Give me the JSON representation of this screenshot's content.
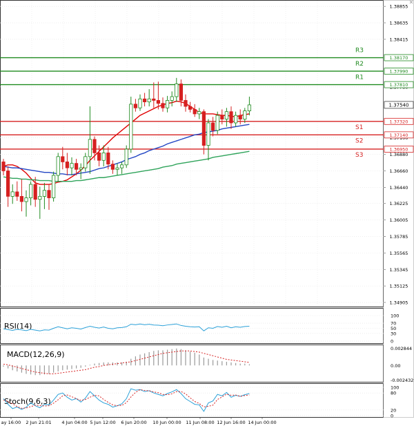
{
  "chart_data": {
    "type": "candlestick",
    "x_tick_labels": [
      "ay 16:00",
      "2 Jun 21:01",
      "4 Jun 04:00",
      "5 Jun 12:00",
      "6 Jun 20:00",
      "10 Jun 00:00",
      "11 Jun 08:00",
      "12 Jun 16:00",
      "14 Jun 00:00"
    ],
    "price": {
      "ylim": [
        1.3485,
        1.3893
      ],
      "y_tick_labels": [
        "1.38855",
        "1.38635",
        "1.38415",
        "1.37780",
        "1.37100",
        "1.36880",
        "1.36660",
        "1.36440",
        "1.36225",
        "1.36005",
        "1.35785",
        "1.35565",
        "1.35345",
        "1.35125",
        "1.34905"
      ],
      "current_price": "1.37540",
      "candles": [
        [
          1.3678,
          1.3682,
          1.366,
          1.3666
        ],
        [
          1.3666,
          1.3672,
          1.3618,
          1.3632
        ],
        [
          1.3632,
          1.3648,
          1.3622,
          1.3638
        ],
        [
          1.3638,
          1.3652,
          1.3626,
          1.3632
        ],
        [
          1.3632,
          1.3655,
          1.3612,
          1.3625
        ],
        [
          1.3625,
          1.364,
          1.3605,
          1.363
        ],
        [
          1.363,
          1.3652,
          1.362,
          1.3648
        ],
        [
          1.3648,
          1.3658,
          1.3618,
          1.3628
        ],
        [
          1.3628,
          1.3645,
          1.3602,
          1.3632
        ],
        [
          1.3632,
          1.365,
          1.3615,
          1.364
        ],
        [
          1.364,
          1.3648,
          1.3614,
          1.363
        ],
        [
          1.363,
          1.3665,
          1.3625,
          1.366
        ],
        [
          1.366,
          1.369,
          1.3652,
          1.3685
        ],
        [
          1.3685,
          1.3698,
          1.3668,
          1.3678
        ],
        [
          1.3678,
          1.369,
          1.366,
          1.367
        ],
        [
          1.367,
          1.3684,
          1.366,
          1.3676
        ],
        [
          1.3676,
          1.3682,
          1.366,
          1.3668
        ],
        [
          1.3668,
          1.3676,
          1.3655,
          1.367
        ],
        [
          1.367,
          1.369,
          1.3665,
          1.3685
        ],
        [
          1.3685,
          1.3752,
          1.3662,
          1.3708
        ],
        [
          1.3708,
          1.3712,
          1.368,
          1.369
        ],
        [
          1.369,
          1.37,
          1.3672,
          1.368
        ],
        [
          1.368,
          1.37,
          1.3672,
          1.369
        ],
        [
          1.369,
          1.3698,
          1.3668,
          1.3675
        ],
        [
          1.3675,
          1.368,
          1.3662,
          1.3668
        ],
        [
          1.3668,
          1.3676,
          1.366,
          1.367
        ],
        [
          1.367,
          1.3678,
          1.3662,
          1.3674
        ],
        [
          1.3674,
          1.37,
          1.367,
          1.3695
        ],
        [
          1.3695,
          1.3765,
          1.369,
          1.3755
        ],
        [
          1.3755,
          1.3762,
          1.3745,
          1.375
        ],
        [
          1.375,
          1.3768,
          1.3746,
          1.3762
        ],
        [
          1.3762,
          1.377,
          1.3752,
          1.3758
        ],
        [
          1.3758,
          1.3775,
          1.3752,
          1.3762
        ],
        [
          1.3762,
          1.3784,
          1.375,
          1.376
        ],
        [
          1.376,
          1.3785,
          1.3748,
          1.3756
        ],
        [
          1.3756,
          1.3764,
          1.3745,
          1.375
        ],
        [
          1.375,
          1.3766,
          1.3744,
          1.376
        ],
        [
          1.376,
          1.3772,
          1.3752,
          1.3765
        ],
        [
          1.3765,
          1.379,
          1.3758,
          1.3782
        ],
        [
          1.3782,
          1.3788,
          1.3752,
          1.376
        ],
        [
          1.376,
          1.3768,
          1.3745,
          1.3752
        ],
        [
          1.3752,
          1.3758,
          1.3744,
          1.3748
        ],
        [
          1.3748,
          1.3755,
          1.3738,
          1.3742
        ],
        [
          1.3742,
          1.375,
          1.3735,
          1.3745
        ],
        [
          1.3745,
          1.3748,
          1.3688,
          1.37
        ],
        [
          1.37,
          1.3735,
          1.368,
          1.373
        ],
        [
          1.373,
          1.3738,
          1.3712,
          1.372
        ],
        [
          1.372,
          1.3745,
          1.3715,
          1.374
        ],
        [
          1.374,
          1.3748,
          1.3728,
          1.3735
        ],
        [
          1.3735,
          1.375,
          1.3725,
          1.3745
        ],
        [
          1.3745,
          1.3752,
          1.3722,
          1.373
        ],
        [
          1.373,
          1.3745,
          1.3725,
          1.374
        ],
        [
          1.374,
          1.3748,
          1.3728,
          1.3735
        ],
        [
          1.3735,
          1.375,
          1.373,
          1.3746
        ],
        [
          1.3746,
          1.3765,
          1.374,
          1.3754
        ]
      ],
      "moving_averages": [
        {
          "color": "#e00000",
          "values": [
            1.3672,
            1.3674,
            1.3674,
            1.3672,
            1.3668,
            1.3663,
            1.3656,
            1.365,
            1.3648,
            1.3648,
            1.3648,
            1.3649,
            1.3651,
            1.3652,
            1.3654,
            1.3658,
            1.3662,
            1.3667,
            1.3673,
            1.368,
            1.3686,
            1.3692,
            1.3698,
            1.3704,
            1.371,
            1.3715,
            1.372,
            1.3725,
            1.373,
            1.3735,
            1.374,
            1.3743,
            1.3746,
            1.3749,
            1.3752,
            1.3754,
            1.3756,
            1.3757,
            1.3759,
            1.3758,
            1.3756,
            1.3752,
            1.3748,
            1.3744,
            1.3742,
            1.3742,
            1.3742,
            1.3741,
            1.374,
            1.374,
            1.3739,
            1.3738,
            1.374,
            1.3741,
            1.3742
          ]
        },
        {
          "color": "#2346c4",
          "values": [
            1.3672,
            1.3671,
            1.367,
            1.367,
            1.3669,
            1.3668,
            1.3667,
            1.3666,
            1.3665,
            1.3664,
            1.3664,
            1.3663,
            1.3662,
            1.3662,
            1.3661,
            1.3661,
            1.3662,
            1.3663,
            1.3664,
            1.3665,
            1.3667,
            1.3669,
            1.367,
            1.3672,
            1.3674,
            1.3676,
            1.3678,
            1.3681,
            1.3683,
            1.3685,
            1.3688,
            1.369,
            1.3693,
            1.3695,
            1.3697,
            1.3699,
            1.3702,
            1.3704,
            1.3706,
            1.3708,
            1.371,
            1.3712,
            1.3714,
            1.3715,
            1.3717,
            1.3718,
            1.3719,
            1.372,
            1.3722,
            1.3723,
            1.3724,
            1.3725,
            1.3726,
            1.3727,
            1.3728
          ]
        },
        {
          "color": "#2ea35a",
          "values": [
            1.3658,
            1.3657,
            1.3656,
            1.3656,
            1.3655,
            1.3655,
            1.3654,
            1.3654,
            1.3653,
            1.3653,
            1.3653,
            1.3652,
            1.3652,
            1.3652,
            1.3652,
            1.3652,
            1.3653,
            1.3653,
            1.3654,
            1.3655,
            1.3656,
            1.3657,
            1.3657,
            1.3658,
            1.3659,
            1.366,
            1.3661,
            1.3662,
            1.3663,
            1.3664,
            1.3665,
            1.3666,
            1.3667,
            1.3668,
            1.3669,
            1.3671,
            1.3672,
            1.3673,
            1.3675,
            1.3676,
            1.3677,
            1.3678,
            1.3679,
            1.368,
            1.3681,
            1.3682,
            1.3684,
            1.3685,
            1.3686,
            1.3687,
            1.3688,
            1.3689,
            1.369,
            1.3691,
            1.3692
          ]
        }
      ],
      "levels": [
        {
          "label": "R3",
          "price": 1.3817,
          "price_label": "1.38170",
          "color": "#1f8a1f"
        },
        {
          "label": "R2",
          "price": 1.3799,
          "price_label": "1.37990",
          "color": "#1f8a1f"
        },
        {
          "label": "R1",
          "price": 1.3781,
          "price_label": "1.37810",
          "color": "#1f8a1f"
        },
        {
          "label": "S1",
          "price": 1.3732,
          "price_label": "1.37320",
          "color": "#d62020"
        },
        {
          "label": "S2",
          "price": 1.3714,
          "price_label": "1.37140",
          "color": "#d62020"
        },
        {
          "label": "S3",
          "price": 1.3695,
          "price_label": "1.36950",
          "color": "#d62020"
        }
      ],
      "bull_color": "#1f8a1f",
      "bear_color": "#d62020"
    },
    "rsi": {
      "title": "RSI(14)",
      "ylim": [
        0,
        100
      ],
      "y_tick_labels": [
        "100",
        "70",
        "50",
        "30",
        "0"
      ],
      "color": "#2aa0d8",
      "values": [
        48,
        45,
        42,
        46,
        44,
        41,
        46,
        43,
        40,
        44,
        43,
        50,
        56,
        52,
        48,
        52,
        50,
        47,
        53,
        58,
        54,
        51,
        55,
        50,
        48,
        52,
        53,
        56,
        66,
        64,
        67,
        64,
        66,
        63,
        62,
        60,
        63,
        65,
        67,
        61,
        58,
        56,
        55,
        56,
        40,
        52,
        50,
        57,
        54,
        58,
        52,
        56,
        54,
        57,
        58
      ]
    },
    "macd": {
      "title": "MACD(12,26,9)",
      "ylim": [
        -0.0026,
        0.003
      ],
      "y_tick_labels": [
        "0.002844",
        "0.00",
        "-0.002432"
      ],
      "histogram_color": "#9a9a9a",
      "signal_color": "#d62020",
      "histogram": [
        -0.0002,
        -0.0005,
        -0.0008,
        -0.001,
        -0.0012,
        -0.0014,
        -0.0015,
        -0.0016,
        -0.0016,
        -0.0015,
        -0.0014,
        -0.0012,
        -0.001,
        -0.0008,
        -0.0007,
        -0.0006,
        -0.0005,
        -0.0004,
        -0.0002,
        0.0001,
        0.0003,
        0.0004,
        0.0005,
        0.0005,
        0.0005,
        0.0005,
        0.0005,
        0.0006,
        0.0011,
        0.0015,
        0.0018,
        0.002,
        0.0022,
        0.0024,
        0.0025,
        0.0025,
        0.0026,
        0.0027,
        0.0028,
        0.0027,
        0.0025,
        0.0023,
        0.0021,
        0.0018,
        0.0013,
        0.0011,
        0.0009,
        0.0008,
        0.0007,
        0.0006,
        0.0005,
        0.0004,
        0.0003,
        0.0003,
        0.0002
      ],
      "signal": [
        0.0002,
        0.0001,
        -0.0001,
        -0.0003,
        -0.0005,
        -0.0007,
        -0.0009,
        -0.0011,
        -0.0012,
        -0.0013,
        -0.0014,
        -0.0014,
        -0.0013,
        -0.0012,
        -0.0011,
        -0.001,
        -0.0009,
        -0.0008,
        -0.0007,
        -0.0005,
        -0.0003,
        -0.0002,
        0.0,
        0.0001,
        0.0002,
        0.0003,
        0.0004,
        0.0005,
        0.0006,
        0.0008,
        0.001,
        0.0012,
        0.0014,
        0.0016,
        0.0018,
        0.002,
        0.0021,
        0.0022,
        0.0023,
        0.0024,
        0.0024,
        0.0024,
        0.0023,
        0.0022,
        0.002,
        0.0018,
        0.0016,
        0.0014,
        0.0012,
        0.001,
        0.0009,
        0.0008,
        0.0007,
        0.0006,
        0.0005
      ]
    },
    "stoch": {
      "title": "Stoch(9,6,3)",
      "ylim": [
        0,
        100
      ],
      "y_tick_labels": [
        "100",
        "80",
        "20",
        "0"
      ],
      "k_color": "#2aa0d8",
      "d_color": "#d62020",
      "k": [
        60,
        40,
        25,
        30,
        22,
        30,
        45,
        35,
        28,
        40,
        38,
        55,
        75,
        80,
        65,
        55,
        60,
        48,
        62,
        85,
        70,
        55,
        45,
        40,
        30,
        35,
        42,
        60,
        95,
        90,
        92,
        85,
        88,
        80,
        75,
        70,
        78,
        84,
        92,
        78,
        60,
        50,
        40,
        38,
        15,
        45,
        52,
        75,
        70,
        82,
        65,
        72,
        68,
        74,
        78
      ],
      "d": [
        55,
        50,
        42,
        32,
        26,
        27,
        32,
        37,
        36,
        34,
        35,
        44,
        56,
        70,
        73,
        67,
        60,
        54,
        57,
        65,
        72,
        70,
        57,
        47,
        38,
        35,
        36,
        46,
        66,
        82,
        92,
        89,
        88,
        84,
        81,
        75,
        74,
        77,
        85,
        85,
        77,
        63,
        50,
        43,
        31,
        33,
        37,
        57,
        66,
        76,
        72,
        73,
        68,
        71,
        73
      ]
    }
  }
}
